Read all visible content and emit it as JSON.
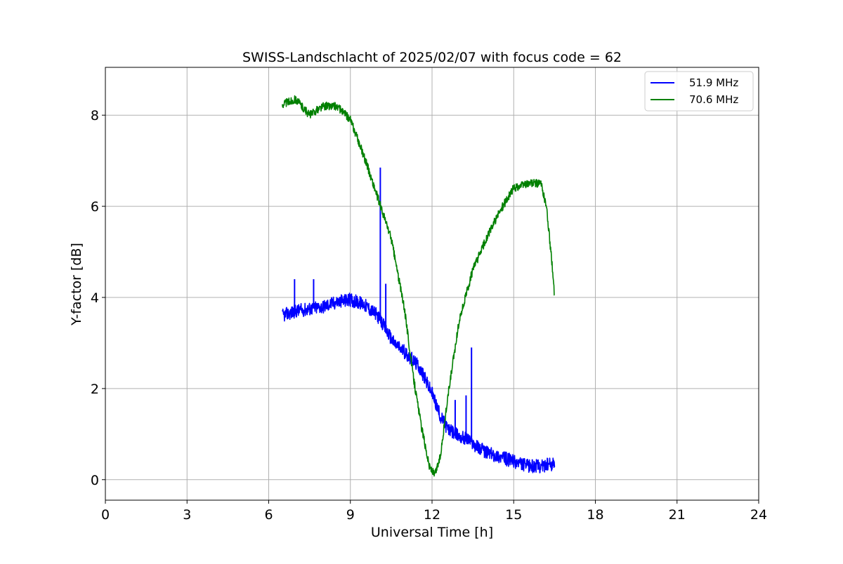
{
  "chart_data": {
    "type": "line",
    "title": "SWISS-Landschlacht of 2025/02/07 with focus code = 62",
    "xlabel": "Universal Time [h]",
    "ylabel": "Y-factor [dB]",
    "xlim": [
      0,
      24
    ],
    "ylim": [
      -0.45,
      9.05
    ],
    "xticks": [
      0,
      3,
      6,
      9,
      12,
      15,
      18,
      21,
      24
    ],
    "yticks": [
      0,
      2,
      4,
      6,
      8
    ],
    "xtick_labels": [
      "0",
      "3",
      "6",
      "9",
      "12",
      "15",
      "18",
      "21",
      "24"
    ],
    "ytick_labels": [
      "0",
      "2",
      "4",
      "6",
      "8"
    ],
    "grid": true,
    "legend_position": "top-right",
    "series": [
      {
        "name": "51.9 MHz",
        "color": "#0000ff",
        "x": [
          6.5,
          7.0,
          7.5,
          8.0,
          8.5,
          9.0,
          9.5,
          10.0,
          10.3,
          10.6,
          11.0,
          11.5,
          12.0,
          12.3,
          12.6,
          13.0,
          13.3,
          13.6,
          14.0,
          14.5,
          15.0,
          15.5,
          16.0,
          16.5
        ],
        "y": [
          3.6,
          3.7,
          3.75,
          3.8,
          3.9,
          3.95,
          3.85,
          3.6,
          3.3,
          3.0,
          2.8,
          2.5,
          1.9,
          1.4,
          1.1,
          0.95,
          0.9,
          0.75,
          0.6,
          0.5,
          0.4,
          0.3,
          0.3,
          0.35
        ],
        "spikes": [
          {
            "x": 6.95,
            "y": 4.4
          },
          {
            "x": 7.65,
            "y": 4.4
          },
          {
            "x": 10.1,
            "y": 6.85
          },
          {
            "x": 10.3,
            "y": 4.3
          },
          {
            "x": 12.85,
            "y": 1.75
          },
          {
            "x": 13.25,
            "y": 1.85
          },
          {
            "x": 13.45,
            "y": 2.9
          }
        ]
      },
      {
        "name": "70.6 MHz",
        "color": "#008000",
        "x": [
          6.5,
          7.0,
          7.5,
          8.0,
          8.5,
          9.0,
          9.5,
          10.0,
          10.5,
          11.0,
          11.3,
          11.6,
          11.9,
          12.1,
          12.3,
          12.6,
          13.0,
          13.5,
          14.0,
          14.5,
          15.0,
          15.5,
          16.0,
          16.2,
          16.4,
          16.5
        ],
        "y": [
          8.25,
          8.35,
          8.0,
          8.2,
          8.2,
          7.9,
          7.1,
          6.2,
          5.3,
          3.7,
          2.3,
          1.2,
          0.3,
          0.1,
          0.5,
          1.9,
          3.5,
          4.6,
          5.3,
          5.9,
          6.4,
          6.5,
          6.5,
          6.0,
          4.8,
          4.0
        ]
      }
    ]
  }
}
